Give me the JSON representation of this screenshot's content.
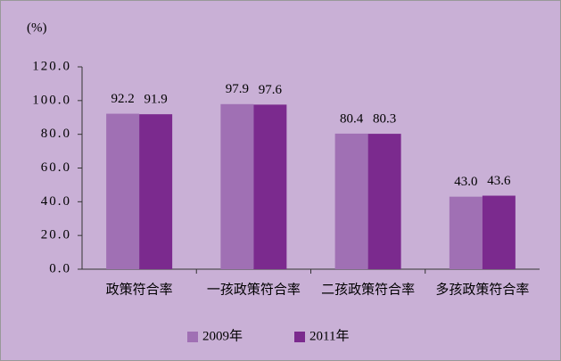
{
  "chart_data": {
    "type": "bar",
    "unit_label": "(%)",
    "categories": [
      "政策符合率",
      "一孩政策符合率",
      "二孩政策符合率",
      "多孩政策符合率"
    ],
    "series": [
      {
        "name": "2009年",
        "color": "#a070b4",
        "values": [
          92.2,
          97.9,
          80.4,
          43.0
        ],
        "value_labels": [
          "92.2",
          "97.9",
          "80.4",
          "43.0"
        ]
      },
      {
        "name": "2011年",
        "color": "#7b2a8e",
        "values": [
          91.9,
          97.6,
          80.3,
          43.6
        ],
        "value_labels": [
          "91.9",
          "97.6",
          "80.3",
          "43.6"
        ]
      }
    ],
    "ylim": [
      0,
      120
    ],
    "yticks": [
      {
        "value": 0,
        "label": "0.0"
      },
      {
        "value": 20,
        "label": "20.0"
      },
      {
        "value": 40,
        "label": "40.0"
      },
      {
        "value": 60,
        "label": "60.0"
      },
      {
        "value": 80,
        "label": "80.0"
      },
      {
        "value": 100,
        "label": "100.0"
      },
      {
        "value": 120,
        "label": "120.0"
      }
    ],
    "grid": false,
    "legend": "bottom"
  }
}
